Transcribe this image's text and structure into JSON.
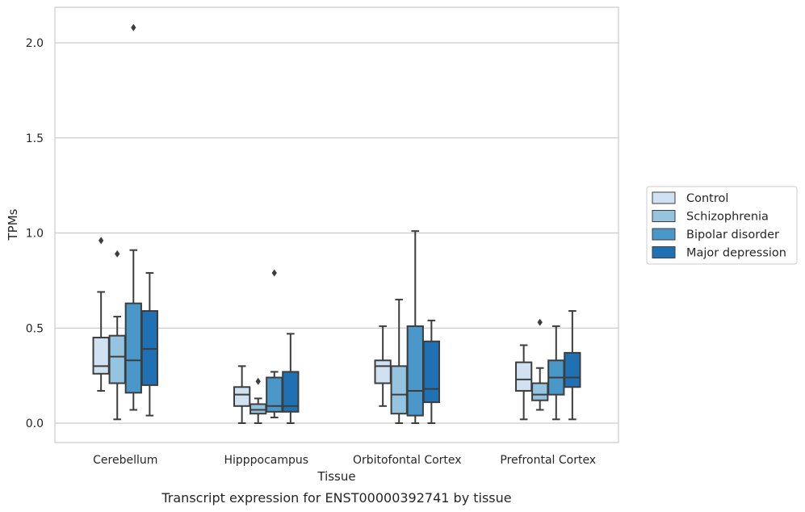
{
  "chart_data": {
    "type": "boxplot",
    "xlabel": "Tissue",
    "ylabel": "TPMs",
    "caption": "Transcript expression for ENST00000392741 by tissue",
    "ylim": [
      -0.1,
      2.2
    ],
    "yticks": [
      0.0,
      0.5,
      1.0,
      1.5,
      2.0
    ],
    "ytick_labels": [
      "0.0",
      "0.5",
      "1.0",
      "1.5",
      "2.0"
    ],
    "grid": true,
    "legend_position": "right",
    "categories": [
      "Cerebellum",
      "Hipppocampus",
      "Orbitofontal Cortex",
      "Prefrontal Cortex"
    ],
    "series": [
      {
        "name": "Control",
        "color": "#d0e1f2",
        "boxes": [
          {
            "whislo": 0.17,
            "q1": 0.26,
            "med": 0.3,
            "q3": 0.45,
            "whishi": 0.69,
            "fliers": [
              0.96
            ]
          },
          {
            "whislo": 0.0,
            "q1": 0.09,
            "med": 0.15,
            "q3": 0.19,
            "whishi": 0.3,
            "fliers": []
          },
          {
            "whislo": 0.09,
            "q1": 0.21,
            "med": 0.3,
            "q3": 0.33,
            "whishi": 0.51,
            "fliers": []
          },
          {
            "whislo": 0.02,
            "q1": 0.17,
            "med": 0.23,
            "q3": 0.32,
            "whishi": 0.41,
            "fliers": []
          }
        ]
      },
      {
        "name": "Schizophrenia",
        "color": "#94c4df",
        "boxes": [
          {
            "whislo": 0.02,
            "q1": 0.21,
            "med": 0.35,
            "q3": 0.46,
            "whishi": 0.56,
            "fliers": [
              0.89
            ]
          },
          {
            "whislo": 0.0,
            "q1": 0.05,
            "med": 0.07,
            "q3": 0.1,
            "whishi": 0.13,
            "fliers": [
              0.22
            ]
          },
          {
            "whislo": 0.0,
            "q1": 0.05,
            "med": 0.15,
            "q3": 0.3,
            "whishi": 0.65,
            "fliers": []
          },
          {
            "whislo": 0.07,
            "q1": 0.12,
            "med": 0.15,
            "q3": 0.21,
            "whishi": 0.29,
            "fliers": [
              0.53
            ]
          }
        ]
      },
      {
        "name": "Bipolar disorder",
        "color": "#4a98c9",
        "boxes": [
          {
            "whislo": 0.07,
            "q1": 0.16,
            "med": 0.33,
            "q3": 0.63,
            "whishi": 0.91,
            "fliers": [
              2.08
            ]
          },
          {
            "whislo": 0.03,
            "q1": 0.06,
            "med": 0.09,
            "q3": 0.24,
            "whishi": 0.27,
            "fliers": [
              0.79
            ]
          },
          {
            "whislo": 0.0,
            "q1": 0.04,
            "med": 0.17,
            "q3": 0.51,
            "whishi": 1.01,
            "fliers": []
          },
          {
            "whislo": 0.02,
            "q1": 0.15,
            "med": 0.24,
            "q3": 0.33,
            "whishi": 0.51,
            "fliers": []
          }
        ]
      },
      {
        "name": "Major depression",
        "color": "#2070b4",
        "boxes": [
          {
            "whislo": 0.04,
            "q1": 0.2,
            "med": 0.39,
            "q3": 0.59,
            "whishi": 0.79,
            "fliers": []
          },
          {
            "whislo": 0.0,
            "q1": 0.06,
            "med": 0.09,
            "q3": 0.27,
            "whishi": 0.47,
            "fliers": []
          },
          {
            "whislo": 0.0,
            "q1": 0.11,
            "med": 0.18,
            "q3": 0.43,
            "whishi": 0.54,
            "fliers": []
          },
          {
            "whislo": 0.02,
            "q1": 0.19,
            "med": 0.24,
            "q3": 0.37,
            "whishi": 0.59,
            "fliers": []
          }
        ]
      }
    ]
  }
}
